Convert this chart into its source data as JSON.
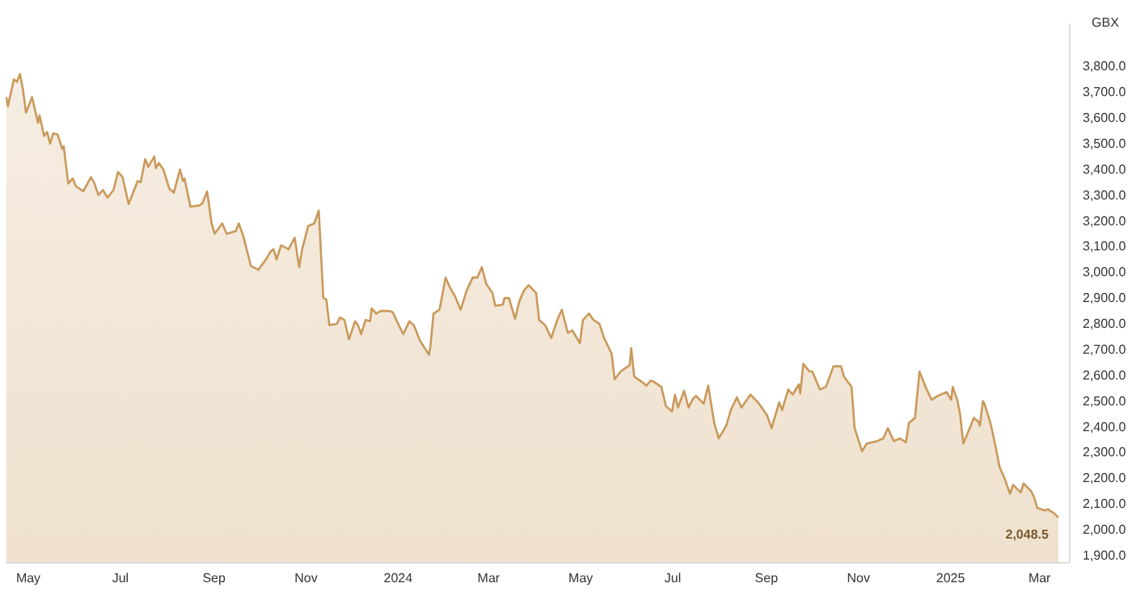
{
  "chart_data": {
    "type": "area",
    "ylabel": "GBX",
    "x": [
      "2023-04-17",
      "2023-04-18",
      "2023-04-22",
      "2023-04-24",
      "2023-04-26",
      "2023-04-28",
      "2023-04-30",
      "2023-05-04",
      "2023-05-08",
      "2023-05-09",
      "2023-05-12",
      "2023-05-14",
      "2023-05-16",
      "2023-05-18",
      "2023-05-21",
      "2023-05-24",
      "2023-05-25",
      "2023-05-28",
      "2023-05-31",
      "2023-06-02",
      "2023-06-07",
      "2023-06-12",
      "2023-06-14",
      "2023-06-17",
      "2023-06-20",
      "2023-06-23",
      "2023-06-27",
      "2023-06-30",
      "2023-07-03",
      "2023-07-07",
      "2023-07-13",
      "2023-07-15",
      "2023-07-18",
      "2023-07-20",
      "2023-07-24",
      "2023-07-25",
      "2023-07-27",
      "2023-07-30",
      "2023-08-03",
      "2023-08-06",
      "2023-08-10",
      "2023-08-12",
      "2023-08-13",
      "2023-08-17",
      "2023-08-23",
      "2023-08-25",
      "2023-08-28",
      "2023-08-31",
      "2023-09-02",
      "2023-09-07",
      "2023-09-10",
      "2023-09-16",
      "2023-09-18",
      "2023-09-21",
      "2023-09-26",
      "2023-10-01",
      "2023-10-06",
      "2023-10-09",
      "2023-10-11",
      "2023-10-13",
      "2023-10-16",
      "2023-10-21",
      "2023-10-25",
      "2023-10-28",
      "2023-10-30",
      "2023-11-03",
      "2023-11-07",
      "2023-11-10",
      "2023-11-13",
      "2023-11-15",
      "2023-11-17",
      "2023-11-22",
      "2023-11-24",
      "2023-11-27",
      "2023-11-30",
      "2023-12-04",
      "2023-12-06",
      "2023-12-08",
      "2023-12-11",
      "2023-12-14",
      "2023-12-15",
      "2023-12-18",
      "2023-12-21",
      "2023-12-27",
      "2023-12-29",
      "2024-01-02",
      "2024-01-05",
      "2024-01-09",
      "2024-01-12",
      "2024-01-16",
      "2024-01-22",
      "2024-01-23",
      "2024-01-25",
      "2024-01-29",
      "2024-02-02",
      "2024-02-05",
      "2024-02-08",
      "2024-02-12",
      "2024-02-16",
      "2024-02-20",
      "2024-02-23",
      "2024-02-26",
      "2024-02-29",
      "2024-03-04",
      "2024-03-06",
      "2024-03-11",
      "2024-03-12",
      "2024-03-15",
      "2024-03-19",
      "2024-03-22",
      "2024-03-25",
      "2024-03-28",
      "2024-04-02",
      "2024-04-04",
      "2024-04-08",
      "2024-04-12",
      "2024-04-16",
      "2024-04-19",
      "2024-04-23",
      "2024-04-26",
      "2024-05-01",
      "2024-05-03",
      "2024-05-07",
      "2024-05-10",
      "2024-05-14",
      "2024-05-17",
      "2024-05-22",
      "2024-05-24",
      "2024-05-28",
      "2024-06-03",
      "2024-06-04",
      "2024-06-06",
      "2024-06-11",
      "2024-06-14",
      "2024-06-17",
      "2024-06-19",
      "2024-06-24",
      "2024-06-27",
      "2024-07-01",
      "2024-07-03",
      "2024-07-05",
      "2024-07-09",
      "2024-07-12",
      "2024-07-15",
      "2024-07-17",
      "2024-07-22",
      "2024-07-25",
      "2024-07-29",
      "2024-08-01",
      "2024-08-06",
      "2024-08-09",
      "2024-08-13",
      "2024-08-16",
      "2024-08-22",
      "2024-08-27",
      "2024-09-02",
      "2024-09-05",
      "2024-09-10",
      "2024-09-12",
      "2024-09-16",
      "2024-09-19",
      "2024-09-23",
      "2024-09-24",
      "2024-09-26",
      "2024-09-30",
      "2024-10-02",
      "2024-10-07",
      "2024-10-11",
      "2024-10-16",
      "2024-10-21",
      "2024-10-23",
      "2024-10-28",
      "2024-10-30",
      "2024-11-04",
      "2024-11-07",
      "2024-11-14",
      "2024-11-18",
      "2024-11-21",
      "2024-11-25",
      "2024-11-29",
      "2024-12-03",
      "2024-12-05",
      "2024-12-09",
      "2024-12-12",
      "2024-12-16",
      "2024-12-20",
      "2024-12-24",
      "2024-12-30",
      "2025-01-02",
      "2025-01-03",
      "2025-01-06",
      "2025-01-08",
      "2025-01-10",
      "2025-01-15",
      "2025-01-17",
      "2025-01-20",
      "2025-01-21",
      "2025-01-23",
      "2025-01-24",
      "2025-01-28",
      "2025-01-31",
      "2025-02-03",
      "2025-02-06",
      "2025-02-10",
      "2025-02-12",
      "2025-02-17",
      "2025-02-19",
      "2025-02-24",
      "2025-02-26",
      "2025-02-28",
      "2025-03-05",
      "2025-03-07",
      "2025-03-11",
      "2025-03-14"
    ],
    "series": [
      {
        "color": "#c9995a",
        "values": [
          3680,
          3645,
          3750,
          3740,
          3770,
          3710,
          3620,
          3680,
          3580,
          3610,
          3530,
          3545,
          3500,
          3540,
          3535,
          3480,
          3490,
          3345,
          3365,
          3335,
          3315,
          3370,
          3350,
          3300,
          3320,
          3290,
          3320,
          3390,
          3370,
          3265,
          3355,
          3350,
          3440,
          3410,
          3450,
          3405,
          3425,
          3400,
          3325,
          3310,
          3400,
          3355,
          3365,
          3255,
          3260,
          3270,
          3315,
          3190,
          3150,
          3190,
          3150,
          3160,
          3190,
          3140,
          3025,
          3010,
          3050,
          3080,
          3090,
          3050,
          3105,
          3090,
          3135,
          3020,
          3090,
          3180,
          3190,
          3240,
          2900,
          2895,
          2795,
          2800,
          2825,
          2815,
          2740,
          2810,
          2795,
          2760,
          2815,
          2810,
          2860,
          2840,
          2850,
          2850,
          2845,
          2795,
          2760,
          2810,
          2795,
          2735,
          2680,
          2715,
          2840,
          2855,
          2980,
          2940,
          2910,
          2855,
          2930,
          2980,
          2980,
          3020,
          2955,
          2920,
          2870,
          2875,
          2900,
          2900,
          2820,
          2890,
          2930,
          2950,
          2920,
          2815,
          2795,
          2745,
          2815,
          2855,
          2765,
          2775,
          2725,
          2815,
          2840,
          2815,
          2800,
          2745,
          2685,
          2585,
          2615,
          2640,
          2705,
          2595,
          2575,
          2560,
          2580,
          2575,
          2555,
          2480,
          2460,
          2525,
          2475,
          2540,
          2475,
          2510,
          2520,
          2490,
          2560,
          2415,
          2355,
          2405,
          2465,
          2515,
          2475,
          2525,
          2495,
          2445,
          2395,
          2495,
          2465,
          2545,
          2525,
          2565,
          2530,
          2645,
          2615,
          2615,
          2545,
          2555,
          2635,
          2635,
          2595,
          2555,
          2395,
          2305,
          2335,
          2345,
          2355,
          2395,
          2345,
          2355,
          2340,
          2415,
          2435,
          2615,
          2555,
          2505,
          2520,
          2535,
          2505,
          2555,
          2505,
          2445,
          2335,
          2405,
          2435,
          2420,
          2405,
          2500,
          2490,
          2415,
          2335,
          2245,
          2205,
          2140,
          2175,
          2145,
          2180,
          2150,
          2125,
          2085,
          2075,
          2080,
          2065,
          2048.5
        ]
      }
    ],
    "xlim": [
      "2023-04-16",
      "2025-03-21"
    ],
    "xticks": [
      {
        "value": "2023-05-01",
        "label": "May"
      },
      {
        "value": "2023-07-01",
        "label": "Jul"
      },
      {
        "value": "2023-09-01",
        "label": "Sep"
      },
      {
        "value": "2023-11-01",
        "label": "Nov"
      },
      {
        "value": "2024-01-01",
        "label": "2024"
      },
      {
        "value": "2024-03-01",
        "label": "Mar"
      },
      {
        "value": "2024-05-01",
        "label": "May"
      },
      {
        "value": "2024-07-01",
        "label": "Jul"
      },
      {
        "value": "2024-09-01",
        "label": "Sep"
      },
      {
        "value": "2024-11-01",
        "label": "Nov"
      },
      {
        "value": "2025-01-01",
        "label": "2025"
      },
      {
        "value": "2025-03-01",
        "label": "Mar"
      }
    ],
    "ylim": [
      1875,
      3970
    ],
    "yticks": [
      {
        "value": 1900,
        "label": "1,900.0"
      },
      {
        "value": 2000,
        "label": "2,000.0"
      },
      {
        "value": 2100,
        "label": "2,100.0"
      },
      {
        "value": 2200,
        "label": "2,200.0"
      },
      {
        "value": 2300,
        "label": "2,300.0"
      },
      {
        "value": 2400,
        "label": "2,400.0"
      },
      {
        "value": 2500,
        "label": "2,500.0"
      },
      {
        "value": 2600,
        "label": "2,600.0"
      },
      {
        "value": 2700,
        "label": "2,700.0"
      },
      {
        "value": 2800,
        "label": "2,800.0"
      },
      {
        "value": 2900,
        "label": "2,900.0"
      },
      {
        "value": 3000,
        "label": "3,000.0"
      },
      {
        "value": 3100,
        "label": "3,100.0"
      },
      {
        "value": 3200,
        "label": "3,200.0"
      },
      {
        "value": 3300,
        "label": "3,300.0"
      },
      {
        "value": 3400,
        "label": "3,400.0"
      },
      {
        "value": 3500,
        "label": "3,500.0"
      },
      {
        "value": 3600,
        "label": "3,600.0"
      },
      {
        "value": 3700,
        "label": "3,700.0"
      },
      {
        "value": 3800,
        "label": "3,800.0"
      }
    ],
    "annotations": [
      {
        "text": "2,048.5",
        "x": "2025-03-14",
        "y": 2048.5
      }
    ]
  }
}
